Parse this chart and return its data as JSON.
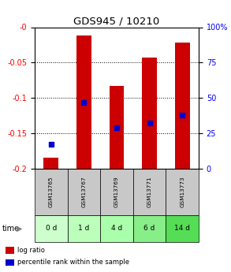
{
  "title": "GDS945 / 10210",
  "samples": [
    "GSM13765",
    "GSM13767",
    "GSM13769",
    "GSM13771",
    "GSM13773"
  ],
  "time_labels": [
    "0 d",
    "1 d",
    "4 d",
    "6 d",
    "14 d"
  ],
  "log_ratio": [
    -0.185,
    -0.012,
    -0.083,
    -0.043,
    -0.022
  ],
  "percentile_rank": [
    0.17,
    0.47,
    0.29,
    0.32,
    0.38
  ],
  "ylim_left": [
    -0.2,
    0.0
  ],
  "ylim_right": [
    0,
    100
  ],
  "yticks_left": [
    0.0,
    -0.05,
    -0.1,
    -0.15,
    -0.2
  ],
  "yticklabels_left": [
    "-0",
    "-0.05",
    "-0.1",
    "-0.15",
    "-0.2"
  ],
  "yticks_right": [
    100,
    75,
    50,
    25,
    0
  ],
  "yticklabels_right": [
    "100%",
    "75",
    "50",
    "25",
    "0"
  ],
  "bar_color": "#cc0000",
  "dot_color": "#0000cc",
  "bar_bottom": -0.2,
  "time_cell_colors": [
    "#ccffcc",
    "#bbffbb",
    "#aaffaa",
    "#88ee88",
    "#55dd55"
  ],
  "gsm_cell_color": "#c8c8c8",
  "legend_log_color": "#cc0000",
  "legend_pct_color": "#0000cc",
  "title_fontsize": 9.5,
  "tick_fontsize": 7,
  "bar_width": 0.45
}
